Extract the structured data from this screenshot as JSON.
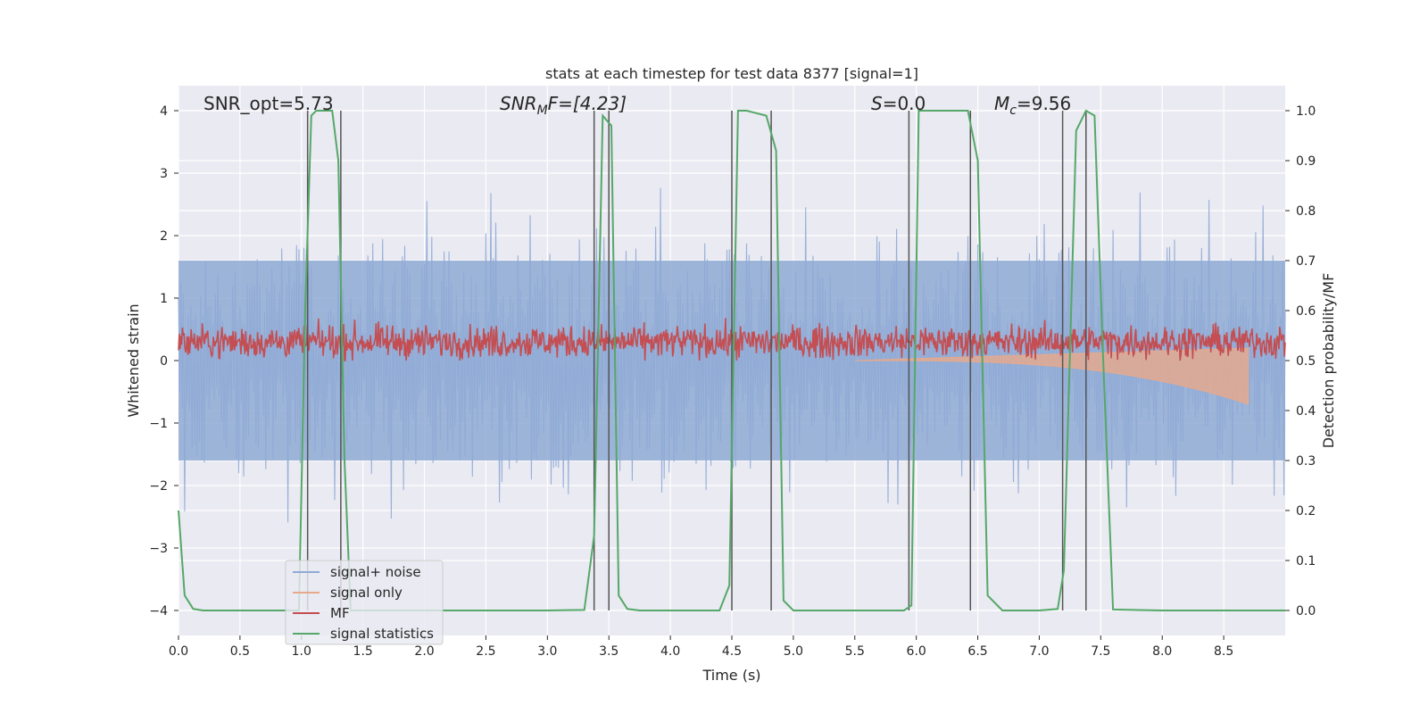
{
  "chart_data": {
    "type": "line",
    "title": "stats at each timestep for test data 8377 [signal=1]",
    "xlabel": "Time (s)",
    "ylabel_left": "Whitened strain",
    "ylabel_right": "Detection probability/MF",
    "xlim": [
      0.0,
      9.0
    ],
    "ylim_left": [
      -4.4,
      4.4
    ],
    "ylim_right": [
      -0.05,
      1.05
    ],
    "x_ticks": [
      "0.0",
      "0.5",
      "1.0",
      "1.5",
      "2.0",
      "2.5",
      "3.0",
      "3.5",
      "4.0",
      "4.5",
      "5.0",
      "5.5",
      "6.0",
      "6.5",
      "7.0",
      "7.5",
      "8.0",
      "8.5"
    ],
    "y_ticks_left": [
      "−4",
      "−3",
      "−2",
      "−1",
      "0",
      "1",
      "2",
      "3",
      "4"
    ],
    "y_ticks_right": [
      "0.0",
      "0.1",
      "0.2",
      "0.3",
      "0.4",
      "0.5",
      "0.6",
      "0.7",
      "0.8",
      "0.9",
      "1.0"
    ],
    "grid": true,
    "legend": {
      "placement": "lower-left",
      "entries": [
        {
          "label": "signal+ noise",
          "color": "#8faad5"
        },
        {
          "label": "signal only",
          "color": "#e8a98b"
        },
        {
          "label": "MF",
          "color": "#c44e52"
        },
        {
          "label": "signal statistics",
          "color": "#55a868"
        }
      ]
    },
    "annotations": {
      "snr_opt": "SNR_opt=5.73",
      "snr_mf_main": "SNR",
      "snr_mf_sub": "M",
      "snr_mf_rest": "F=[4.23]",
      "s_main": "S",
      "s_rest": "=0.0",
      "mc_main": "M",
      "mc_sub": "c",
      "mc_rest": "=9.56"
    },
    "series": [
      {
        "name": "signal+ noise",
        "axis": "left",
        "kind": "noise",
        "center": 0.0,
        "typical_amplitude": 1.6,
        "peak_amplitude": 3.5,
        "x_range": [
          0.0,
          9.0
        ],
        "color": "#8faad5"
      },
      {
        "name": "signal only",
        "axis": "left",
        "kind": "chirp",
        "x_range": [
          5.5,
          8.7
        ],
        "end_amplitude": -0.7,
        "color": "#e8a98b"
      },
      {
        "name": "MF",
        "axis": "left",
        "kind": "noise_positive",
        "center": 0.3,
        "typical_amplitude": 0.35,
        "peak_amplitude": 0.85,
        "x_range": [
          0.0,
          9.0
        ],
        "color": "#c44e52"
      },
      {
        "name": "signal statistics",
        "axis": "right",
        "color": "#55a868",
        "x": [
          0.0,
          0.05,
          0.12,
          0.2,
          0.3,
          0.5,
          0.8,
          0.98,
          1.03,
          1.08,
          1.12,
          1.2,
          1.25,
          1.3,
          1.35,
          1.4,
          1.5,
          2.0,
          2.5,
          3.0,
          3.3,
          3.38,
          3.45,
          3.52,
          3.58,
          3.65,
          3.75,
          4.0,
          4.4,
          4.48,
          4.55,
          4.62,
          4.78,
          4.86,
          4.92,
          5.0,
          5.5,
          5.9,
          5.96,
          6.02,
          6.1,
          6.42,
          6.5,
          6.58,
          6.7,
          7.0,
          7.15,
          7.2,
          7.3,
          7.38,
          7.45,
          7.52,
          7.6,
          8.0,
          9.0
        ],
        "values": [
          0.2,
          0.03,
          0.003,
          0.0,
          0.0,
          0.0,
          0.0,
          0.0,
          0.6,
          0.99,
          1.0,
          1.0,
          1.0,
          0.9,
          0.3,
          0.0,
          0.0,
          0.0,
          0.0,
          0.0,
          0.001,
          0.15,
          0.99,
          0.97,
          0.03,
          0.003,
          0.0,
          0.0,
          0.0,
          0.05,
          1.0,
          1.0,
          0.99,
          0.92,
          0.02,
          0.0,
          0.0,
          0.0,
          0.01,
          1.0,
          1.0,
          1.0,
          0.9,
          0.03,
          0.0,
          0.0,
          0.003,
          0.08,
          0.96,
          1.0,
          0.99,
          0.5,
          0.002,
          0.0,
          0.0
        ]
      }
    ],
    "vertical_lines": [
      1.05,
      1.32,
      3.38,
      3.5,
      4.5,
      4.82,
      5.94,
      6.44,
      7.19,
      7.38
    ]
  }
}
